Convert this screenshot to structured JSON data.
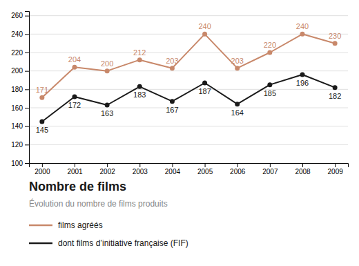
{
  "chart_data": {
    "type": "line",
    "title": "Nombre de films",
    "subtitle": "Évolution du nombre de films produits",
    "x": [
      2000,
      2001,
      2002,
      2003,
      2004,
      2005,
      2006,
      2007,
      2008,
      2009
    ],
    "series": [
      {
        "name": "films agréés",
        "color": "#C8886A",
        "values": [
          171,
          204,
          200,
          212,
          203,
          240,
          203,
          220,
          240,
          230
        ]
      },
      {
        "name": "dont films d’initiative française (FIF)",
        "color": "#1a1a1a",
        "values": [
          145,
          172,
          163,
          183,
          167,
          187,
          164,
          185,
          196,
          182
        ]
      }
    ],
    "xlim": [
      1999.6,
      2009.4
    ],
    "xticks": [
      2000,
      2001,
      2002,
      2003,
      2004,
      2005,
      2006,
      2007,
      2008,
      2009
    ],
    "ylim": [
      100,
      265
    ],
    "yticks": [
      100,
      120,
      140,
      160,
      180,
      200,
      220,
      240,
      260
    ],
    "grid": true,
    "data_labels": true,
    "marker": "circle",
    "legend": "bottom"
  }
}
